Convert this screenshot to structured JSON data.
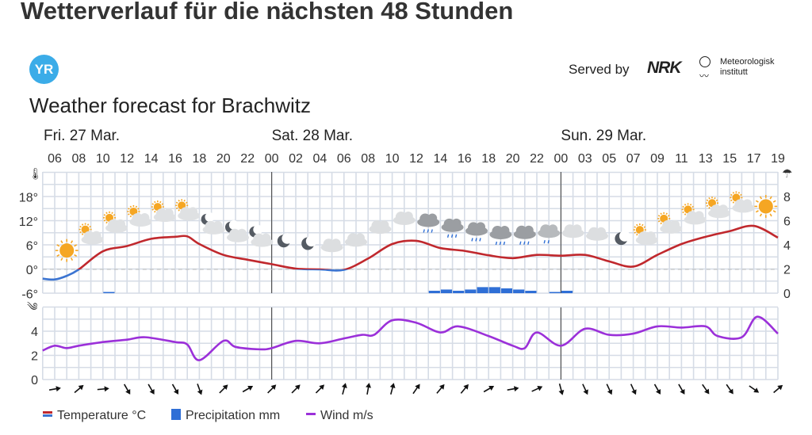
{
  "page_title": "Wetterverlauf für die nächsten 48 Stunden",
  "logo_text": "YR",
  "served_by": "Served by",
  "nrk_logo": "NRK",
  "met_logo": "Meteorologisk institutt",
  "met_logo_line1": "Meteorologisk",
  "met_logo_line2": "institutt",
  "forecast_title": "Weather forecast for Brachwitz",
  "colors": {
    "temp_warm": "#c0282d",
    "temp_cold": "#3b74d1",
    "precip": "#2f6fd6",
    "wind": "#9b30d9",
    "grid": "#d6dce6",
    "icon_sun": "#f5a623"
  },
  "chart_data": {
    "type": "line",
    "days": [
      {
        "label": "Fri. 27 Mar.",
        "hour": 0
      },
      {
        "label": "Sat. 28 Mar.",
        "hour": 18
      },
      {
        "label": "Sun. 29 Mar.",
        "hour": 42
      }
    ],
    "x_tick_labels": [
      "06",
      "08",
      "10",
      "12",
      "14",
      "16",
      "18",
      "20",
      "22",
      "00",
      "02",
      "04",
      "06",
      "08",
      "10",
      "12",
      "14",
      "16",
      "18",
      "20",
      "22",
      "00",
      "03",
      "05",
      "07",
      "09",
      "11",
      "13",
      "15",
      "17",
      "19"
    ],
    "temperature": {
      "name": "Temperature °C",
      "y_ticks": [
        "18°",
        "12°",
        "6°",
        "0°",
        "-6°"
      ],
      "ylim": [
        -6,
        24
      ],
      "points": [
        [
          -1,
          -2.3
        ],
        [
          0,
          -2.5
        ],
        [
          1,
          -1.6
        ],
        [
          2,
          0
        ],
        [
          4,
          4.5
        ],
        [
          6,
          5.8
        ],
        [
          8,
          7.6
        ],
        [
          10,
          8.1
        ],
        [
          11,
          8.2
        ],
        [
          12,
          6.3
        ],
        [
          14,
          3.6
        ],
        [
          16,
          2.4
        ],
        [
          18,
          1.3
        ],
        [
          20,
          0.2
        ],
        [
          22,
          0
        ],
        [
          24,
          -0.1
        ],
        [
          26,
          2.7
        ],
        [
          28,
          6.3
        ],
        [
          30,
          7.1
        ],
        [
          32,
          5.3
        ],
        [
          34,
          4.6
        ],
        [
          36,
          3.5
        ],
        [
          38,
          2.8
        ],
        [
          40,
          3.6
        ],
        [
          42,
          3.4
        ],
        [
          44,
          3.6
        ],
        [
          46,
          2.0
        ],
        [
          48,
          0.7
        ],
        [
          50,
          3.6
        ],
        [
          52,
          6.3
        ],
        [
          54,
          8.1
        ],
        [
          56,
          9.5
        ],
        [
          58,
          10.8
        ],
        [
          60,
          7.9
        ]
      ]
    },
    "precipitation": {
      "name": "Precipitation mm",
      "y_ticks": [
        "8",
        "6",
        "4",
        "2",
        "0"
      ],
      "ylim": [
        0,
        10
      ],
      "bars": [
        [
          4,
          0.1
        ],
        [
          31,
          0.2
        ],
        [
          32,
          0.3
        ],
        [
          33,
          0.2
        ],
        [
          34,
          0.3
        ],
        [
          35,
          0.5
        ],
        [
          36,
          0.5
        ],
        [
          37,
          0.4
        ],
        [
          38,
          0.3
        ],
        [
          39,
          0.2
        ],
        [
          41,
          0.1
        ],
        [
          42,
          0.2
        ]
      ]
    },
    "wind": {
      "name": "Wind m/s",
      "y_ticks": [
        "4",
        "2",
        "0"
      ],
      "ylim": [
        0,
        6
      ],
      "points": [
        [
          -1,
          2.4
        ],
        [
          0,
          2.8
        ],
        [
          1,
          2.6
        ],
        [
          2,
          2.8
        ],
        [
          4,
          3.1
        ],
        [
          6,
          3.3
        ],
        [
          7.5,
          3.5
        ],
        [
          10,
          3.1
        ],
        [
          11,
          2.9
        ],
        [
          12,
          1.6
        ],
        [
          14,
          3.2
        ],
        [
          15,
          2.7
        ],
        [
          17,
          2.5
        ],
        [
          18,
          2.6
        ],
        [
          20,
          3.2
        ],
        [
          22,
          3.0
        ],
        [
          24,
          3.4
        ],
        [
          25.5,
          3.7
        ],
        [
          26.5,
          3.7
        ],
        [
          28,
          4.9
        ],
        [
          30,
          4.7
        ],
        [
          32,
          3.9
        ],
        [
          33.5,
          4.4
        ],
        [
          36,
          3.6
        ],
        [
          38,
          2.8
        ],
        [
          39,
          2.6
        ],
        [
          40,
          3.9
        ],
        [
          42,
          2.8
        ],
        [
          44,
          4.2
        ],
        [
          46,
          3.7
        ],
        [
          48,
          3.8
        ],
        [
          50,
          4.4
        ],
        [
          52,
          4.3
        ],
        [
          54,
          4.4
        ],
        [
          55,
          3.6
        ],
        [
          57,
          3.5
        ],
        [
          58.3,
          5.2
        ],
        [
          60,
          3.8
        ]
      ],
      "directions_deg": [
        80,
        50,
        85,
        150,
        150,
        150,
        160,
        45,
        60,
        45,
        45,
        45,
        15,
        10,
        15,
        35,
        40,
        40,
        60,
        80,
        65,
        165,
        155,
        155,
        155,
        150,
        150,
        145,
        145,
        125,
        50
      ]
    },
    "symbols": [
      "sun",
      "partly-sunny",
      "partly-sunny",
      "partly-sunny",
      "partly-sunny",
      "partly-sunny",
      "partly-night",
      "partly-night",
      "partly-night",
      "moon",
      "moon",
      "cloud",
      "cloud",
      "cloud",
      "cloud",
      "rain",
      "rain",
      "rain",
      "rain",
      "rain",
      "light-rain",
      "cloud",
      "cloud",
      "moon",
      "partly-sunny",
      "partly-sunny",
      "partly-sunny",
      "partly-sunny",
      "partly-sunny",
      "sun"
    ],
    "legend": [
      "Temperature °C",
      "Precipitation mm",
      "Wind m/s"
    ],
    "legend_position": "bottom-left"
  }
}
